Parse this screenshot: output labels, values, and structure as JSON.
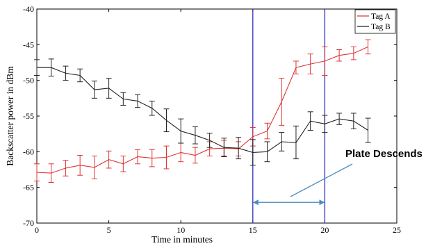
{
  "colors": {
    "tag_a": "#e03434",
    "tag_b": "#222222",
    "marker_lines": "#3030c0",
    "arrow": "#4a8cc4",
    "axes": "#000000"
  },
  "chart_data": {
    "type": "line",
    "title": "",
    "xlabel": "Time in minutes",
    "ylabel": "Backscatter power in dBm",
    "xlim": [
      0,
      25
    ],
    "ylim": [
      -70,
      -40
    ],
    "xticks": [
      "0",
      "5",
      "10",
      "15",
      "20",
      "25"
    ],
    "yticks": [
      "-40",
      "-45",
      "-50",
      "-55",
      "-60",
      "-65",
      "-70"
    ],
    "grid": false,
    "legend_position": "top-right",
    "series": [
      {
        "name": "Tag A",
        "color": "#e03434",
        "x": [
          0,
          1,
          2,
          3,
          4,
          5,
          6,
          7,
          8,
          9,
          10,
          11,
          12,
          13,
          14,
          15,
          16,
          17,
          18,
          19,
          20,
          21,
          22,
          23
        ],
        "y": [
          -62.9,
          -63.0,
          -62.3,
          -61.9,
          -62.2,
          -61.1,
          -61.7,
          -60.7,
          -60.9,
          -60.8,
          -60.1,
          -60.5,
          -59.6,
          -59.5,
          -59.6,
          -57.9,
          -57.1,
          -53.0,
          -48.2,
          -47.7,
          -47.3,
          -46.5,
          -46.2,
          -45.3
        ],
        "err": [
          1.2,
          1.3,
          1.1,
          1.4,
          1.6,
          1.2,
          1.1,
          1.0,
          1.2,
          1.6,
          1.3,
          1.1,
          1.0,
          1.1,
          1.0,
          1.3,
          1.1,
          3.3,
          0.9,
          1.4,
          2.0,
          0.8,
          0.9,
          1.0
        ]
      },
      {
        "name": "Tag B",
        "color": "#222222",
        "x": [
          0,
          1,
          2,
          3,
          4,
          5,
          6,
          7,
          8,
          9,
          10,
          11,
          12,
          13,
          14,
          15,
          16,
          17,
          18,
          19,
          20,
          21,
          22,
          23
        ],
        "y": [
          -48.2,
          -48.2,
          -49.0,
          -49.3,
          -51.3,
          -51.1,
          -52.6,
          -52.9,
          -53.9,
          -55.6,
          -57.1,
          -57.7,
          -58.4,
          -59.4,
          -59.5,
          -60.1,
          -60.0,
          -58.6,
          -58.7,
          -55.7,
          -56.1,
          -55.4,
          -55.7,
          -57.0
        ]
      }
    ],
    "error_bars": true,
    "err_b": [
      1.1,
      1.2,
      1.0,
      0.9,
      1.2,
      1.4,
      0.9,
      0.9,
      1.0,
      1.6,
      1.7,
      1.2,
      1.0,
      1.3,
      1.5,
      1.8,
      1.4,
      1.3,
      2.3,
      1.3,
      1.2,
      0.8,
      1.1,
      1.7
    ],
    "vertical_markers": [
      15,
      20
    ],
    "annotation": {
      "text": "Plate Descends",
      "arrow_from": 15,
      "arrow_to": 20,
      "arrow_y": -67.1
    }
  }
}
